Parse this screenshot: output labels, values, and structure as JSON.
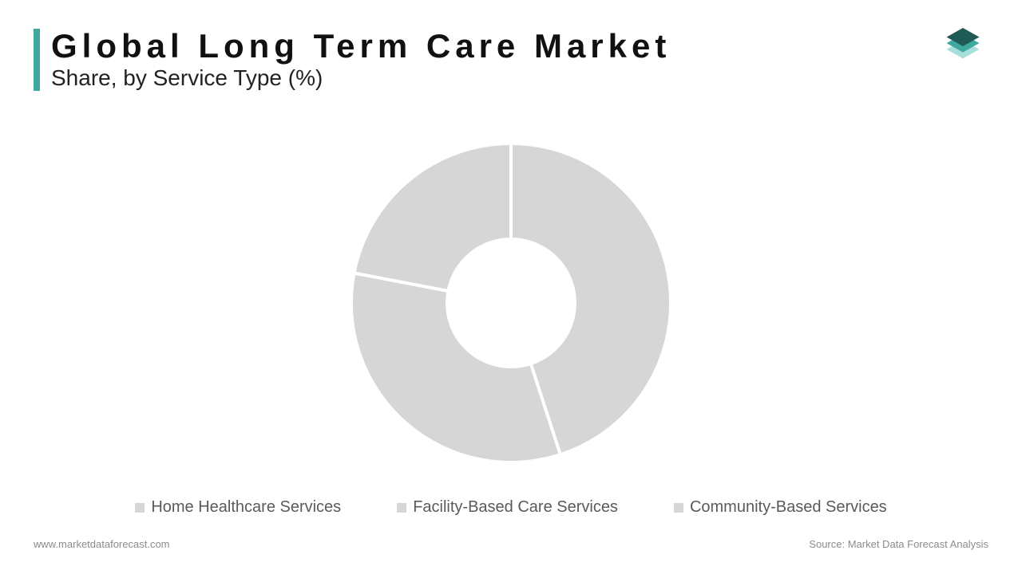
{
  "header": {
    "title": "Global Long Term Care Market",
    "subtitle": "Share, by Service Type (%)",
    "accent_color": "#3fa9a0"
  },
  "chart": {
    "type": "donut",
    "background_color": "#ffffff",
    "stroke_color": "#ffffff",
    "stroke_width": 2,
    "inner_radius_pct": 40,
    "outer_radius_pct": 100,
    "slices": [
      {
        "label": "Home Healthcare Services",
        "value": 45,
        "color": "#d6d6d6"
      },
      {
        "label": "Facility-Based Care Services",
        "value": 33,
        "color": "#d6d6d6"
      },
      {
        "label": "Community-Based Services",
        "value": 22,
        "color": "#d6d6d6"
      }
    ],
    "legend_fontsize": 20,
    "legend_text_color": "#5a5a5a",
    "legend_swatch_color": "#d6d6d6"
  },
  "logo": {
    "top_color": "#1f5a56",
    "mid_color": "#3fa9a0",
    "bot_color": "#a9dedb"
  },
  "footer": {
    "left": "www.marketdataforecast.com",
    "right": "Source: Market Data Forecast Analysis",
    "color": "#8c8c8c",
    "fontsize": 13
  }
}
